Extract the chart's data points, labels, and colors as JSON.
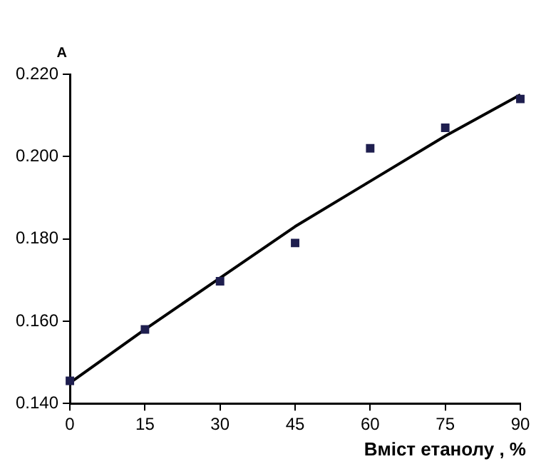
{
  "chart_data": {
    "type": "scatter",
    "xlabel": "Вміст етанолу , %",
    "ylabel": "A",
    "series": [
      {
        "color": "#1f1f4f",
        "marker": "square",
        "x": [
          0,
          15,
          30,
          45,
          60,
          75,
          90
        ],
        "values": [
          0.1455,
          0.158,
          0.1697,
          0.179,
          0.202,
          0.207,
          0.214
        ]
      },
      {
        "type": "line",
        "color": "#000000",
        "marker": "none",
        "x": [
          0,
          15,
          30,
          45,
          60,
          75,
          90
        ],
        "values": [
          0.145,
          0.158,
          0.1705,
          0.183,
          0.194,
          0.205,
          0.215
        ]
      }
    ],
    "xlim": [
      0,
      90
    ],
    "xticks": [
      0,
      15,
      30,
      45,
      60,
      75,
      90
    ],
    "ylim": [
      0.14,
      0.22
    ],
    "yticks": [
      {
        "value": 0.14,
        "label": "0.140"
      },
      {
        "value": 0.16,
        "label": "0.160"
      },
      {
        "value": 0.18,
        "label": "0.180"
      },
      {
        "value": 0.2,
        "label": "0.200"
      },
      {
        "value": 0.22,
        "label": "0.220"
      }
    ],
    "grid": false,
    "legend": false
  }
}
